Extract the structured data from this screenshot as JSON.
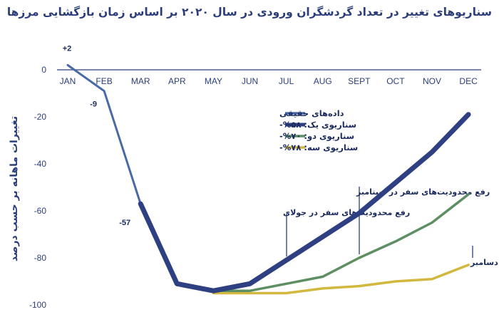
{
  "chart_data": {
    "type": "line",
    "title": "سناریوهای تغییر در تعداد گردشگران ورودی در سال ۲۰۲۰ بر اساس زمان بازگشایی مرزها",
    "xlabel": "",
    "ylabel": "تغییرات ماهانه بر حسب درصد",
    "categories": [
      "JAN",
      "FEB",
      "MAR",
      "APR",
      "MAY",
      "JUN",
      "JUL",
      "AUG",
      "SEPT",
      "OCT",
      "NOV",
      "DEC"
    ],
    "y_ticks": [
      "0",
      "-20",
      "-40",
      "-60",
      "-80",
      "-100"
    ],
    "ylim": [
      -100,
      0
    ],
    "grid": false,
    "series": [
      {
        "name": "داده‌های حقیقی",
        "color": "#4a6aa5",
        "width": 3,
        "points": [
          [
            0,
            2
          ],
          [
            1,
            -9
          ],
          [
            2,
            -57
          ]
        ]
      },
      {
        "name": "سناریوی یک: ‎-%۵۸",
        "color": "#2e3f82",
        "width": 7,
        "points": [
          [
            2,
            -57
          ],
          [
            3,
            -91
          ],
          [
            4,
            -94
          ],
          [
            5,
            -91
          ],
          [
            6,
            -81
          ],
          [
            7,
            -71
          ],
          [
            8,
            -61
          ],
          [
            9,
            -48
          ],
          [
            10,
            -35
          ],
          [
            11,
            -19
          ]
        ]
      },
      {
        "name": "سناریوی دو: ‎-%۷۰",
        "color": "#5e8f63",
        "width": 3.5,
        "points": [
          [
            4,
            -94
          ],
          [
            5,
            -94
          ],
          [
            6,
            -91
          ],
          [
            7,
            -88
          ],
          [
            8,
            -80
          ],
          [
            9,
            -73
          ],
          [
            10,
            -65
          ],
          [
            11,
            -53
          ]
        ]
      },
      {
        "name": "سناریوی سه: ‎-%۷۸",
        "color": "#d2b83e",
        "width": 3.5,
        "points": [
          [
            4,
            -95
          ],
          [
            5,
            -95
          ],
          [
            6,
            -95
          ],
          [
            7,
            -93
          ],
          [
            8,
            -92
          ],
          [
            9,
            -90
          ],
          [
            10,
            -89
          ],
          [
            11,
            -83
          ]
        ]
      }
    ],
    "data_labels": [
      {
        "x": 0,
        "y": 2,
        "text": "+2"
      },
      {
        "x": 1,
        "y": -9,
        "text": "-9"
      },
      {
        "x": 2,
        "y": -57,
        "text": "-57"
      }
    ],
    "annotations": [
      {
        "text": "رفع محدودیت‌های سفر در جولای",
        "x": 6
      },
      {
        "text": "رفع محدودیت‌های سفر در سپتامبر",
        "x": 8
      },
      {
        "text": "رفع محدودیت‌های سفر در دسامبر",
        "x": 11
      }
    ],
    "legend_position": "center-right"
  }
}
